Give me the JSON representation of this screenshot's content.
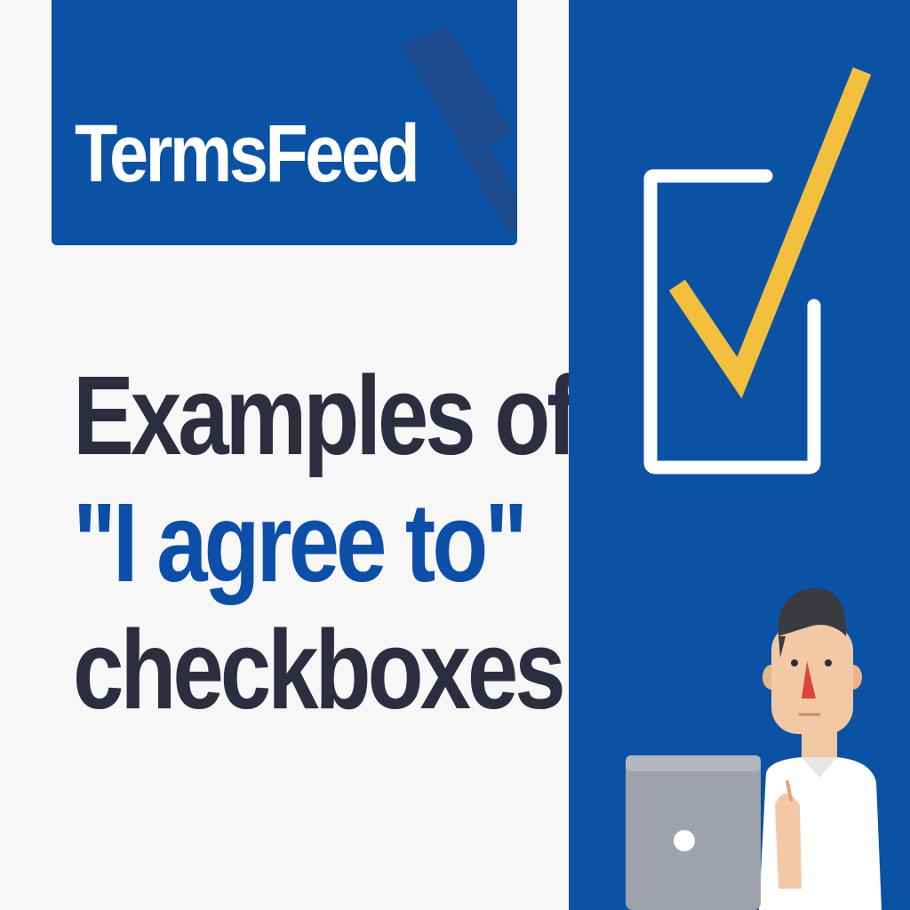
{
  "logo": {
    "text": "TermsFeed",
    "color": "#ffffff",
    "background": "#0b52a5",
    "icon": "gavel-icon"
  },
  "headline": {
    "line1": "Examples of",
    "line2": "\"I agree to\"",
    "line3": "checkboxes",
    "dark_color": "#2c2e3f",
    "accent_color": "#0d4fa8"
  },
  "illustration": {
    "panel_color": "#0b52a5",
    "checkmark_color": "#f3c03e",
    "icons": [
      "checkbox-icon",
      "checkmark-icon",
      "person-figure",
      "laptop-icon"
    ]
  }
}
